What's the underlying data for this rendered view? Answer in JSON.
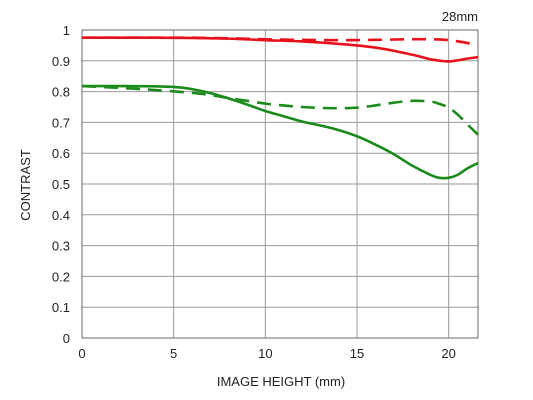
{
  "chart_data": {
    "type": "line",
    "title": "28mm",
    "xlabel": "IMAGE HEIGHT (mm)",
    "ylabel": "CONTRAST",
    "xlim": [
      0,
      21.6
    ],
    "ylim": [
      0,
      1
    ],
    "x_ticks": [
      "0",
      "5",
      "10",
      "15",
      "20"
    ],
    "y_ticks": [
      "0",
      "0.1",
      "0.2",
      "0.3",
      "0.4",
      "0.5",
      "0.6",
      "0.7",
      "0.8",
      "0.9",
      "1"
    ],
    "grid": true,
    "series": [
      {
        "color": "#e8101a",
        "style": "solid",
        "x": [
          0,
          2,
          4,
          6,
          8,
          10,
          12,
          14,
          16,
          18,
          19,
          20,
          21,
          21.6
        ],
        "y": [
          0.975,
          0.975,
          0.975,
          0.974,
          0.972,
          0.967,
          0.963,
          0.955,
          0.943,
          0.92,
          0.905,
          0.898,
          0.907,
          0.912
        ]
      },
      {
        "color": "#e8101a",
        "style": "dashed",
        "x": [
          0,
          2,
          4,
          6,
          8,
          10,
          12,
          14,
          16,
          18,
          19,
          20,
          21,
          21.6
        ],
        "y": [
          0.975,
          0.975,
          0.975,
          0.975,
          0.973,
          0.97,
          0.968,
          0.967,
          0.968,
          0.97,
          0.97,
          0.967,
          0.958,
          0.95
        ]
      },
      {
        "color": "#1a8a1a",
        "style": "solid",
        "x": [
          0,
          2,
          4,
          5,
          6,
          7,
          8,
          9,
          10,
          11,
          12,
          13,
          14,
          15,
          16,
          17,
          18,
          19,
          19.5,
          20,
          20.5,
          21,
          21.6
        ],
        "y": [
          0.818,
          0.818,
          0.817,
          0.815,
          0.808,
          0.795,
          0.778,
          0.758,
          0.737,
          0.72,
          0.703,
          0.69,
          0.675,
          0.655,
          0.628,
          0.597,
          0.56,
          0.53,
          0.52,
          0.52,
          0.53,
          0.55,
          0.568
        ]
      },
      {
        "color": "#1a8a1a",
        "style": "dashed",
        "x": [
          0,
          2,
          4,
          6,
          7,
          8,
          9,
          10,
          11,
          12,
          13,
          14,
          15,
          16,
          17,
          18,
          19,
          19.5,
          20,
          20.5,
          21,
          21.6
        ],
        "y": [
          0.818,
          0.812,
          0.805,
          0.796,
          0.789,
          0.779,
          0.77,
          0.761,
          0.755,
          0.75,
          0.747,
          0.746,
          0.748,
          0.755,
          0.764,
          0.77,
          0.768,
          0.76,
          0.748,
          0.725,
          0.695,
          0.66
        ]
      }
    ]
  }
}
